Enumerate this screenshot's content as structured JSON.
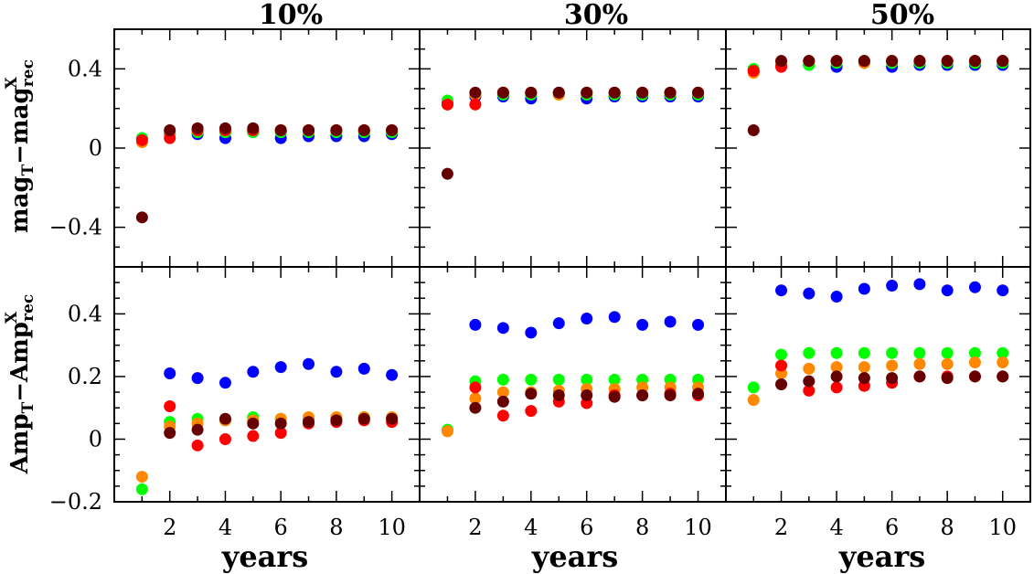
{
  "chart_data": {
    "type": "scatter",
    "column_titles": [
      "10%",
      "30%",
      "50%"
    ],
    "xlabel": "years",
    "ylabel_top": {
      "base1": "mag",
      "sub1": "T",
      "dash": "−",
      "base2": "mag",
      "sub2": "rec",
      "sup2": "X"
    },
    "ylabel_bottom": {
      "base1": "Amp",
      "sub1": "T",
      "dash": "−",
      "base2": "Amp",
      "sub2": "rec",
      "sup2": "X"
    },
    "x": [
      1,
      2,
      3,
      4,
      5,
      6,
      7,
      8,
      9,
      10
    ],
    "xticks": [
      2,
      4,
      6,
      8,
      10
    ],
    "xlim": [
      0,
      11
    ],
    "top": {
      "ylim": [
        -0.6,
        0.6
      ],
      "yticks": [
        -0.4,
        0,
        0.4
      ],
      "yticklabels": [
        "−0.4",
        "0",
        "0.4"
      ]
    },
    "bottom": {
      "ylim": [
        -0.2,
        0.55
      ],
      "yticks": [
        -0.2,
        0,
        0.2,
        0.4
      ],
      "yticklabels": [
        "−0.2",
        "0",
        "0.2",
        "0.4"
      ]
    },
    "series_colors": [
      "#0000ff",
      "#00ff00",
      "#ff8800",
      "#ff0000",
      "#660000"
    ],
    "panels": [
      {
        "row": "top",
        "col": 0,
        "series": [
          {
            "values": [
              0.05,
              0.07,
              0.07,
              0.05,
              0.08,
              0.05,
              0.06,
              0.06,
              0.06,
              0.07
            ]
          },
          {
            "values": [
              0.05,
              0.07,
              0.08,
              0.08,
              0.08,
              0.08,
              0.08,
              0.08,
              0.08,
              0.08
            ]
          },
          {
            "values": [
              0.03,
              0.08,
              0.09,
              0.09,
              0.09,
              0.09,
              0.09,
              0.09,
              0.09,
              0.09
            ]
          },
          {
            "values": [
              0.04,
              0.05,
              0.09,
              0.09,
              0.09,
              0.09,
              0.09,
              0.09,
              0.09,
              0.09
            ]
          },
          {
            "values": [
              -0.35,
              0.09,
              0.1,
              0.1,
              0.1,
              0.09,
              0.09,
              0.09,
              0.09,
              0.09
            ]
          }
        ]
      },
      {
        "row": "top",
        "col": 1,
        "series": [
          {
            "values": [
              0.23,
              0.26,
              0.26,
              0.25,
              0.28,
              0.25,
              0.26,
              0.26,
              0.26,
              0.26
            ]
          },
          {
            "values": [
              0.24,
              0.27,
              0.27,
              0.27,
              0.27,
              0.27,
              0.27,
              0.27,
              0.27,
              0.27
            ]
          },
          {
            "values": [
              0.22,
              0.27,
              0.28,
              0.28,
              0.27,
              0.28,
              0.28,
              0.28,
              0.28,
              0.28
            ]
          },
          {
            "values": [
              0.22,
              0.22,
              0.28,
              0.28,
              0.28,
              0.28,
              0.28,
              0.28,
              0.28,
              0.28
            ]
          },
          {
            "values": [
              -0.13,
              0.28,
              0.28,
              0.28,
              0.28,
              0.28,
              0.28,
              0.28,
              0.28,
              0.28
            ]
          }
        ]
      },
      {
        "row": "top",
        "col": 2,
        "series": [
          {
            "values": [
              0.39,
              0.42,
              0.42,
              0.41,
              0.43,
              0.41,
              0.42,
              0.42,
              0.42,
              0.42
            ]
          },
          {
            "values": [
              0.4,
              0.43,
              0.42,
              0.43,
              0.43,
              0.43,
              0.43,
              0.43,
              0.43,
              0.43
            ]
          },
          {
            "values": [
              0.38,
              0.43,
              0.44,
              0.44,
              0.43,
              0.44,
              0.44,
              0.44,
              0.44,
              0.44
            ]
          },
          {
            "values": [
              0.39,
              0.41,
              0.44,
              0.44,
              0.44,
              0.44,
              0.44,
              0.44,
              0.44,
              0.44
            ]
          },
          {
            "values": [
              0.09,
              0.44,
              0.44,
              0.44,
              0.44,
              0.44,
              0.44,
              0.44,
              0.44,
              0.44
            ]
          }
        ]
      },
      {
        "row": "bottom",
        "col": 0,
        "series": [
          {
            "values": [
              null,
              0.21,
              0.195,
              0.18,
              0.215,
              0.23,
              0.24,
              0.215,
              0.225,
              0.205
            ]
          },
          {
            "values": [
              -0.16,
              0.055,
              0.065,
              0.06,
              0.07,
              0.065,
              0.065,
              0.065,
              0.07,
              0.065
            ]
          },
          {
            "values": [
              -0.12,
              0.04,
              0.05,
              0.06,
              0.06,
              0.065,
              0.07,
              0.07,
              0.07,
              0.07
            ]
          },
          {
            "values": [
              null,
              0.105,
              -0.02,
              0.0,
              0.01,
              0.02,
              0.05,
              0.055,
              0.06,
              0.055
            ]
          },
          {
            "values": [
              null,
              0.02,
              0.03,
              0.065,
              0.05,
              0.05,
              0.055,
              0.06,
              0.065,
              0.065
            ]
          }
        ]
      },
      {
        "row": "bottom",
        "col": 1,
        "series": [
          {
            "values": [
              null,
              0.365,
              0.355,
              0.34,
              0.37,
              0.385,
              0.39,
              0.365,
              0.375,
              0.365
            ]
          },
          {
            "values": [
              0.03,
              0.185,
              0.19,
              0.19,
              0.19,
              0.19,
              0.19,
              0.19,
              0.19,
              0.19
            ]
          },
          {
            "values": [
              0.025,
              0.13,
              0.15,
              0.15,
              0.155,
              0.16,
              0.16,
              0.165,
              0.165,
              0.165
            ]
          },
          {
            "values": [
              null,
              0.165,
              0.075,
              0.09,
              0.12,
              0.115,
              0.14,
              0.14,
              0.145,
              0.14
            ]
          },
          {
            "values": [
              null,
              0.1,
              0.12,
              0.145,
              0.14,
              0.14,
              0.135,
              0.14,
              0.14,
              0.145
            ]
          }
        ]
      },
      {
        "row": "bottom",
        "col": 2,
        "series": [
          {
            "values": [
              null,
              0.475,
              0.465,
              0.455,
              0.48,
              0.49,
              0.495,
              0.475,
              0.485,
              0.475
            ]
          },
          {
            "values": [
              0.165,
              0.27,
              0.275,
              0.275,
              0.275,
              0.275,
              0.275,
              0.275,
              0.275,
              0.275
            ]
          },
          {
            "values": [
              0.125,
              0.21,
              0.225,
              0.23,
              0.23,
              0.235,
              0.24,
              0.24,
              0.245,
              0.245
            ]
          },
          {
            "values": [
              null,
              0.235,
              0.155,
              0.165,
              0.17,
              0.18,
              0.2,
              0.2,
              0.2,
              0.2
            ]
          },
          {
            "values": [
              null,
              0.175,
              0.185,
              0.2,
              0.195,
              0.195,
              0.2,
              0.195,
              0.2,
              0.2
            ]
          }
        ]
      }
    ]
  }
}
